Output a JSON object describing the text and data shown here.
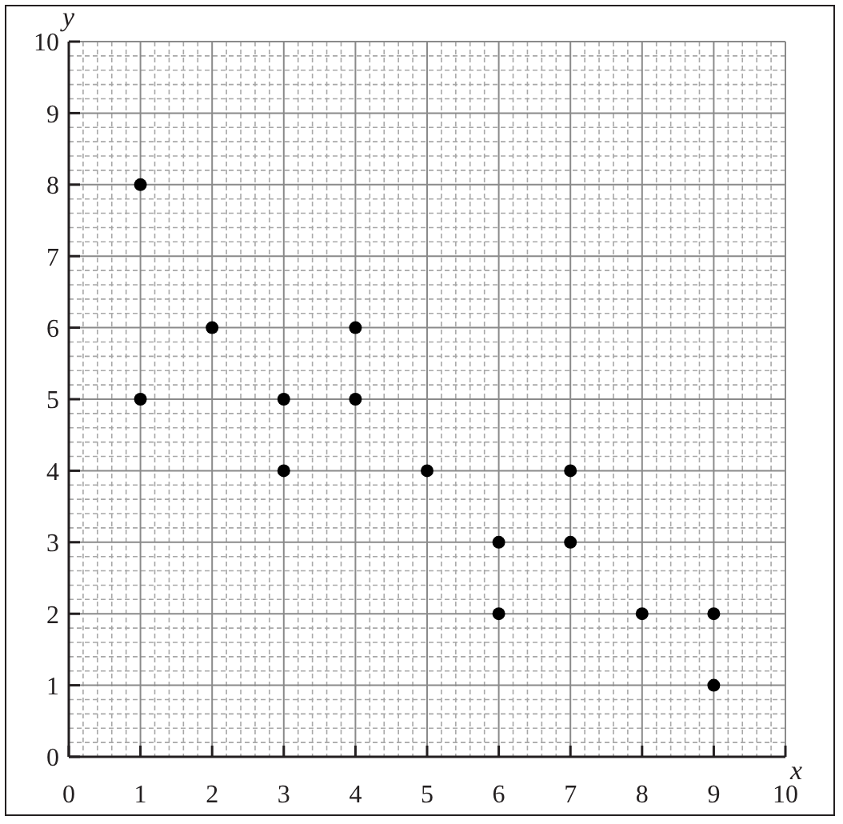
{
  "chart_data": {
    "type": "scatter",
    "xlabel": "x",
    "ylabel": "y",
    "x": [
      1,
      1,
      2,
      3,
      3,
      4,
      4,
      5,
      6,
      6,
      7,
      7,
      8,
      9,
      9
    ],
    "values": [
      8,
      5,
      6,
      5,
      4,
      6,
      5,
      4,
      3,
      2,
      4,
      3,
      2,
      2,
      1
    ],
    "color": "#000000",
    "marker": "circle",
    "xlim": [
      0,
      10
    ],
    "ylim": [
      0,
      10
    ],
    "xticks": [
      0,
      1,
      2,
      3,
      4,
      5,
      6,
      7,
      8,
      9,
      10
    ],
    "yticks": [
      0,
      1,
      2,
      3,
      4,
      5,
      6,
      7,
      8,
      9,
      10
    ],
    "grid": true
  }
}
